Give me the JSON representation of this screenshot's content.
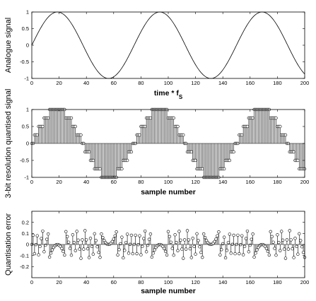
{
  "chart_data": [
    {
      "type": "line",
      "ylabel": "Analogue signal",
      "xlabel": "time * f",
      "xlabel_sub": "S",
      "xlim": [
        0,
        200
      ],
      "ylim": [
        -1,
        1
      ],
      "xticks": [
        "0",
        "20",
        "40",
        "60",
        "80",
        "100",
        "120",
        "140",
        "160",
        "180",
        "200"
      ],
      "yticks": [
        "1",
        "0.5",
        "0",
        "-0.5",
        "-1"
      ],
      "series": [
        {
          "function": "sin(2*pi*t/75)",
          "x_range": [
            0,
            200
          ]
        }
      ]
    },
    {
      "type": "stem",
      "ylabel": "3-bit resolution quantised signal",
      "xlabel": "sample number",
      "xlim": [
        0,
        200
      ],
      "ylim": [
        -1,
        1
      ],
      "xticks": [
        "0",
        "20",
        "40",
        "60",
        "80",
        "100",
        "120",
        "140",
        "160",
        "180",
        "200"
      ],
      "yticks": [
        "1",
        "0.5",
        "0",
        "-0.5",
        "-1"
      ],
      "series": [
        {
          "function": "round(4*sin(2*pi*n/75))/4",
          "n_range": [
            0,
            200
          ]
        }
      ]
    },
    {
      "type": "stem",
      "ylabel": "Quantisation error",
      "xlabel": "sample number",
      "xlim": [
        0,
        200
      ],
      "ylim": [
        -0.3,
        0.3
      ],
      "xticks": [
        "0",
        "20",
        "40",
        "60",
        "80",
        "100",
        "120",
        "140",
        "160",
        "180",
        "200"
      ],
      "yticks": [
        "0.2",
        "0.1",
        "0",
        "-0.1",
        "-0.2"
      ],
      "series": [
        {
          "function": "sin(2*pi*n/75) - round(4*sin(2*pi*n/75))/4",
          "n_range": [
            0,
            200
          ]
        }
      ]
    }
  ]
}
